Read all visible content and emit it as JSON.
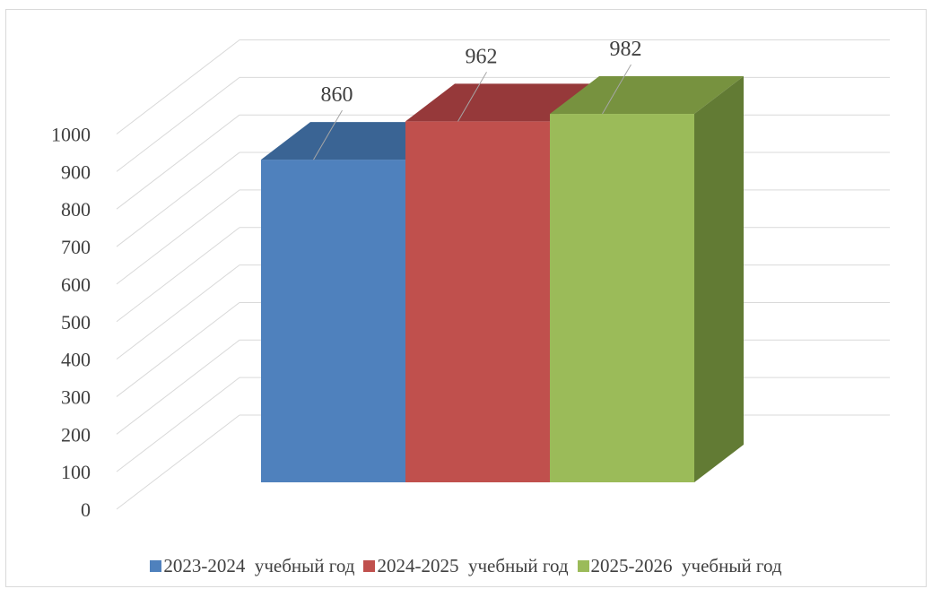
{
  "chart_data": {
    "type": "bar",
    "title": "",
    "xlabel": "",
    "ylabel": "",
    "ylim": [
      0,
      1000
    ],
    "yticks": [
      0,
      100,
      200,
      300,
      400,
      500,
      600,
      700,
      800,
      900,
      1000
    ],
    "grid": true,
    "legend_position": "bottom",
    "categories": [
      ""
    ],
    "series": [
      {
        "name": "2023-2024  учебный год",
        "values": [
          860
        ],
        "color": "#4F81BD",
        "top_color": "#3A6494",
        "side_color": "#2F5283"
      },
      {
        "name": "2024-2025  учебный год",
        "values": [
          962
        ],
        "color": "#C0504D",
        "top_color": "#96393A",
        "side_color": "#7F2E2C"
      },
      {
        "name": "2025-2026  учебный год",
        "values": [
          982
        ],
        "color": "#9BBB59",
        "top_color": "#77923F",
        "side_color": "#627B34"
      }
    ],
    "data_labels": [
      "860",
      "962",
      "982"
    ]
  }
}
